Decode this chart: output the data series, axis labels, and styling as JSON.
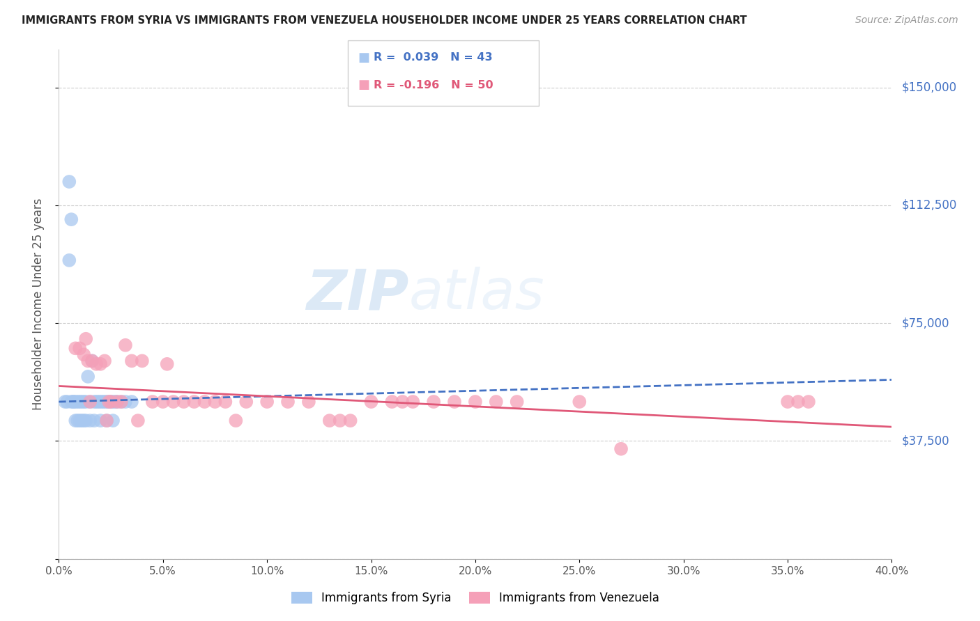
{
  "title": "IMMIGRANTS FROM SYRIA VS IMMIGRANTS FROM VENEZUELA HOUSEHOLDER INCOME UNDER 25 YEARS CORRELATION CHART",
  "source": "Source: ZipAtlas.com",
  "xlabel_vals": [
    0.0,
    5.0,
    10.0,
    15.0,
    20.0,
    25.0,
    30.0,
    35.0,
    40.0
  ],
  "ylabel_ticks": [
    0,
    37500,
    75000,
    112500,
    150000
  ],
  "ylabel_labels": [
    "$0",
    "$37,500",
    "$75,000",
    "$112,500",
    "$150,000"
  ],
  "xlim": [
    0.0,
    40.0
  ],
  "ylim": [
    0,
    162000
  ],
  "ylabel": "Householder Income Under 25 years",
  "syria_color": "#a8c8f0",
  "venezuela_color": "#f5a0b8",
  "syria_line_color": "#4472c4",
  "venezuela_line_color": "#e05878",
  "watermark_zip": "ZIP",
  "watermark_atlas": "atlas",
  "syria_x": [
    0.3,
    0.4,
    0.5,
    0.6,
    0.7,
    0.8,
    0.9,
    1.0,
    1.1,
    1.2,
    1.3,
    1.4,
    1.5,
    1.6,
    1.7,
    1.8,
    1.9,
    2.0,
    2.1,
    2.2,
    2.3,
    2.4,
    2.5,
    2.6,
    2.7,
    2.8,
    3.0,
    3.2,
    3.5,
    0.5,
    0.6,
    0.7,
    0.8,
    0.9,
    1.0,
    1.1,
    1.2,
    1.3,
    1.5,
    1.7,
    2.0,
    2.3,
    2.6
  ],
  "syria_y": [
    50000,
    50000,
    120000,
    108000,
    50000,
    50000,
    50000,
    50000,
    50000,
    50000,
    50000,
    58000,
    50000,
    63000,
    50000,
    50000,
    50000,
    50000,
    50000,
    50000,
    50000,
    50000,
    50000,
    50000,
    50000,
    50000,
    50000,
    50000,
    50000,
    95000,
    50000,
    50000,
    44000,
    44000,
    44000,
    44000,
    44000,
    44000,
    44000,
    44000,
    44000,
    44000,
    44000
  ],
  "venezuela_x": [
    0.8,
    1.0,
    1.2,
    1.4,
    1.5,
    1.6,
    1.8,
    2.0,
    2.2,
    2.4,
    2.5,
    2.8,
    3.0,
    3.2,
    3.5,
    4.0,
    4.5,
    5.0,
    5.5,
    6.0,
    6.5,
    7.0,
    7.5,
    8.0,
    9.0,
    10.0,
    11.0,
    12.0,
    13.0,
    14.0,
    15.0,
    16.0,
    17.0,
    18.0,
    19.0,
    20.0,
    21.0,
    22.0,
    25.0,
    27.0,
    1.3,
    2.3,
    3.8,
    5.2,
    8.5,
    13.5,
    16.5,
    35.0,
    35.5,
    36.0
  ],
  "venezuela_y": [
    67000,
    67000,
    65000,
    63000,
    50000,
    63000,
    62000,
    62000,
    63000,
    50000,
    50000,
    50000,
    50000,
    68000,
    63000,
    63000,
    50000,
    50000,
    50000,
    50000,
    50000,
    50000,
    50000,
    50000,
    50000,
    50000,
    50000,
    50000,
    44000,
    44000,
    50000,
    50000,
    50000,
    50000,
    50000,
    50000,
    50000,
    50000,
    50000,
    35000,
    70000,
    44000,
    44000,
    62000,
    44000,
    44000,
    50000,
    50000,
    50000,
    50000
  ],
  "syria_trend_x": [
    0.0,
    40.0
  ],
  "syria_trend_y": [
    50000,
    57000
  ],
  "venezuela_trend_x": [
    0.0,
    40.0
  ],
  "venezuela_trend_y": [
    55000,
    42000
  ]
}
